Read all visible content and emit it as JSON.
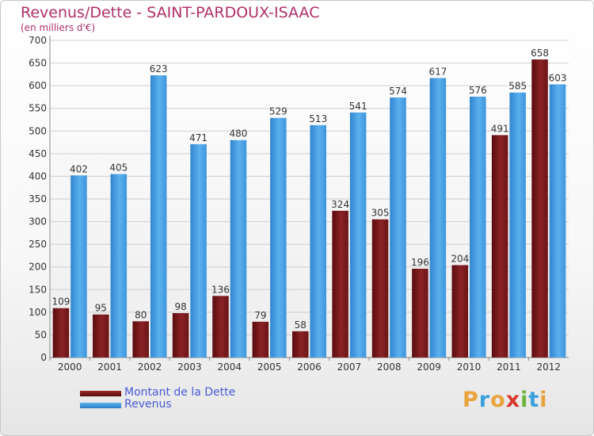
{
  "title": "Revenus/Dette - SAINT-PARDOUX-ISAAC",
  "subtitle": "(en milliers d'€)",
  "legend": [
    {
      "label": "Montant de la Dette",
      "color": "#7a1416"
    },
    {
      "label": "Revenus",
      "color": "#3e9ae0"
    }
  ],
  "logo_letters": [
    "P",
    "r",
    "o",
    "x",
    "i",
    "t",
    "i"
  ],
  "logo_colors": [
    "#e8a33c",
    "#3aa0dc",
    "#e8a33c",
    "#d73a2f",
    "#6bb33a",
    "#3aa0dc",
    "#e8a33c"
  ],
  "chart_data": {
    "type": "bar",
    "categories": [
      "2000",
      "2001",
      "2002",
      "2003",
      "2004",
      "2005",
      "2006",
      "2007",
      "2008",
      "2009",
      "2010",
      "2011",
      "2012"
    ],
    "series": [
      {
        "name": "Montant de la Dette",
        "color": "#7a1416",
        "values": [
          109,
          95,
          80,
          98,
          136,
          79,
          58,
          324,
          305,
          196,
          204,
          491,
          658
        ]
      },
      {
        "name": "Revenus",
        "color": "#3e9ae0",
        "values": [
          402,
          405,
          623,
          471,
          480,
          529,
          513,
          541,
          574,
          617,
          576,
          585,
          603
        ]
      }
    ],
    "ylim": [
      0,
      700
    ],
    "yticks": [
      0,
      50,
      100,
      150,
      200,
      250,
      300,
      350,
      400,
      450,
      500,
      550,
      600,
      650,
      700
    ],
    "grid": true,
    "legend_position": "bottom-left"
  }
}
